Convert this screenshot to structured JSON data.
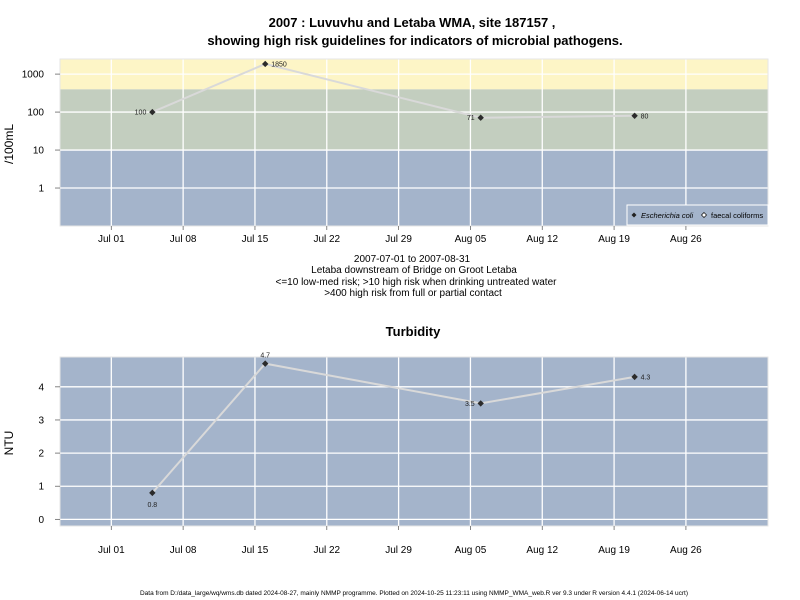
{
  "chart_data": [
    {
      "type": "line",
      "title": "2007 : Luvuvhu and Letaba WMA, site 187157 ,",
      "subtitle": "showing high risk guidelines for indicators of microbial pathogens.",
      "ylabel": "/100mL",
      "yscale": "log",
      "ylim": [
        0.1,
        2500
      ],
      "yticks": [
        1,
        10,
        100,
        1000
      ],
      "ytick_labels": [
        "1",
        "10",
        "100",
        "1000"
      ],
      "xlim": [
        "2007-06-26",
        "2007-09-03"
      ],
      "xticks": [
        "2007-07-01",
        "2007-07-08",
        "2007-07-15",
        "2007-07-22",
        "2007-07-29",
        "2007-08-05",
        "2007-08-12",
        "2007-08-19",
        "2007-08-26"
      ],
      "xtick_labels": [
        "Jul 01",
        "Jul 08",
        "Jul 15",
        "Jul 22",
        "Jul 29",
        "Aug 05",
        "Aug 12",
        "Aug 19",
        "Aug 26"
      ],
      "bands": [
        {
          "from": 0.1,
          "to": 10,
          "color": "#a4b4cb"
        },
        {
          "from": 10,
          "to": 400,
          "color": "#c3cebf"
        },
        {
          "from": 400,
          "to": 2500,
          "color": "#fdf5c6"
        }
      ],
      "series": [
        {
          "name": "Escherichia coli",
          "color": "#d9d9d9",
          "x": [
            "2007-07-05",
            "2007-07-16",
            "2007-08-06",
            "2007-08-21"
          ],
          "y": [
            100,
            1850,
            71,
            80
          ],
          "labels": [
            "100",
            "1850",
            "71",
            "80"
          ],
          "label_side": [
            "left",
            "right",
            "left",
            "right"
          ]
        }
      ],
      "legend": {
        "position": "bottom-right",
        "entries": [
          {
            "label": "Escherichia coli",
            "marker": "filled-diamond",
            "italic": true
          },
          {
            "label": "faecal coliforms",
            "marker": "open-diamond",
            "italic": false
          }
        ]
      },
      "caption": [
        "2007-07-01 to 2007-08-31",
        "Letaba downstream of Bridge on Groot Letaba",
        "<=10 low-med risk; >10 high risk when drinking untreated water",
        ">400 high risk from full or partial contact"
      ],
      "grid": true
    },
    {
      "type": "line",
      "title": "Turbidity",
      "ylabel": "NTU",
      "yscale": "linear",
      "ylim": [
        -0.2,
        4.9
      ],
      "yticks": [
        0,
        1,
        2,
        3,
        4
      ],
      "ytick_labels": [
        "0",
        "1",
        "2",
        "3",
        "4"
      ],
      "xlim": [
        "2007-06-26",
        "2007-09-03"
      ],
      "xticks": [
        "2007-07-01",
        "2007-07-08",
        "2007-07-15",
        "2007-07-22",
        "2007-07-29",
        "2007-08-05",
        "2007-08-12",
        "2007-08-19",
        "2007-08-26"
      ],
      "xtick_labels": [
        "Jul 01",
        "Jul 08",
        "Jul 15",
        "Jul 22",
        "Jul 29",
        "Aug 05",
        "Aug 12",
        "Aug 19",
        "Aug 26"
      ],
      "background": "#a4b4cb",
      "series": [
        {
          "name": "",
          "color": "#d9d9d9",
          "x": [
            "2007-07-05",
            "2007-07-16",
            "2007-08-06",
            "2007-08-21"
          ],
          "y": [
            0.8,
            4.7,
            3.5,
            4.3
          ],
          "labels": [
            "0.8",
            "4.7",
            "3.5",
            "4.3"
          ],
          "label_side": [
            "below",
            "above",
            "left",
            "right"
          ]
        }
      ],
      "grid": true
    }
  ],
  "footer": "Data from D:/data_large/wq/wms.db dated 2024-08-27, mainly NMMP programme. Plotted on 2024-10-25 11:23:11 using NMMP_WMA_web.R ver 9.3 under R version 4.4.1 (2024-06-14 ucrt)"
}
